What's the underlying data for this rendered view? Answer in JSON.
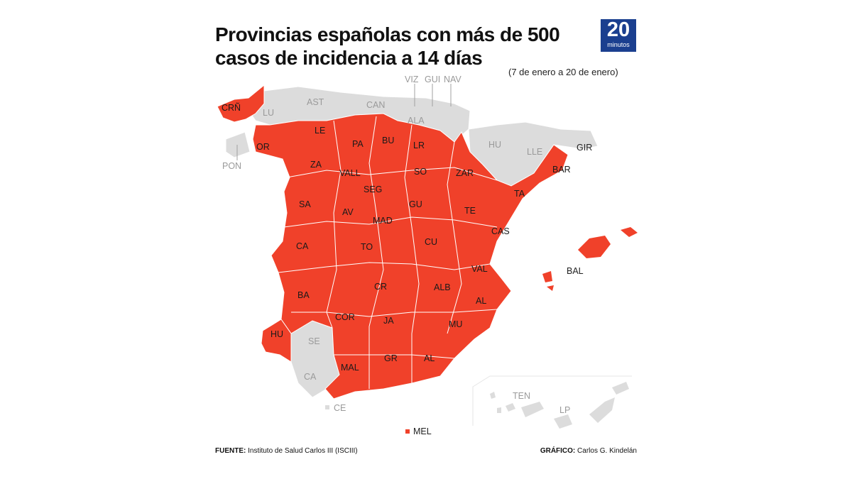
{
  "title_line1": "Provincias españolas con más de 500",
  "title_line2": "casos de incidencia a 14 días",
  "logo": {
    "number": "20",
    "word": "minutos"
  },
  "period": "(7 de enero a 20 de enero)",
  "colors": {
    "above_500": "#f0412a",
    "below_500": "#dcdcdc",
    "logo_bg": "#1b3f8f"
  },
  "provinces_above_500": [
    "CRÑ",
    "OR",
    "LE",
    "PA",
    "BU",
    "LR",
    "ZA",
    "VALL",
    "SO",
    "ZAR",
    "BAR",
    "SEG",
    "TA",
    "SA",
    "AV",
    "GU",
    "TE",
    "MAD",
    "CAS",
    "CA",
    "TO",
    "CU",
    "VAL",
    "BA",
    "CR",
    "ALB",
    "AL",
    "COR",
    "JA",
    "MU",
    "HU",
    "MAL",
    "GR",
    "AL",
    "BAL",
    "MEL"
  ],
  "provinces_below_500": [
    "LU",
    "AST",
    "CAN",
    "VIZ",
    "GUI",
    "NAV",
    "ALA",
    "HU",
    "LLE",
    "GIR",
    "PON",
    "SE",
    "CA",
    "CE",
    "TEN",
    "LP"
  ],
  "labels": {
    "cr": "CRÑ",
    "or": "OR",
    "le": "LE",
    "pa": "PA",
    "bu": "BU",
    "lr": "LR",
    "za": "ZA",
    "vall": "VALL",
    "so": "SO",
    "zar": "ZAR",
    "bar": "BAR",
    "seg": "SEG",
    "ta": "TA",
    "sa": "SA",
    "av": "AV",
    "gu": "GU",
    "te": "TE",
    "mad": "MAD",
    "cas": "CAS",
    "cac": "CA",
    "to": "TO",
    "cu": "CU",
    "val": "VAL",
    "ba": "BA",
    "crl": "CR",
    "alb": "ALB",
    "alc": "AL",
    "cor": "COR",
    "ja": "JA",
    "mu": "MU",
    "hue": "HU",
    "mal": "MAL",
    "gr": "GR",
    "alm": "AL",
    "bal": "BAL",
    "mel": "MEL",
    "lu": "LU",
    "ast": "AST",
    "can": "CAN",
    "viz": "VIZ",
    "gui": "GUI",
    "nav": "NAV",
    "ala": "ALA",
    "hus": "HU",
    "lle": "LLE",
    "gir": "GIR",
    "pon": "PON",
    "se": "SE",
    "cad": "CA",
    "ce": "CE",
    "ten": "TEN",
    "lp": "LP"
  },
  "source_label": "FUENTE:",
  "source_text": " Instituto de Salud Carlos III (ISCIII)",
  "credit_label": "GRÁFICO:",
  "credit_text": " Carlos G. Kindelán"
}
